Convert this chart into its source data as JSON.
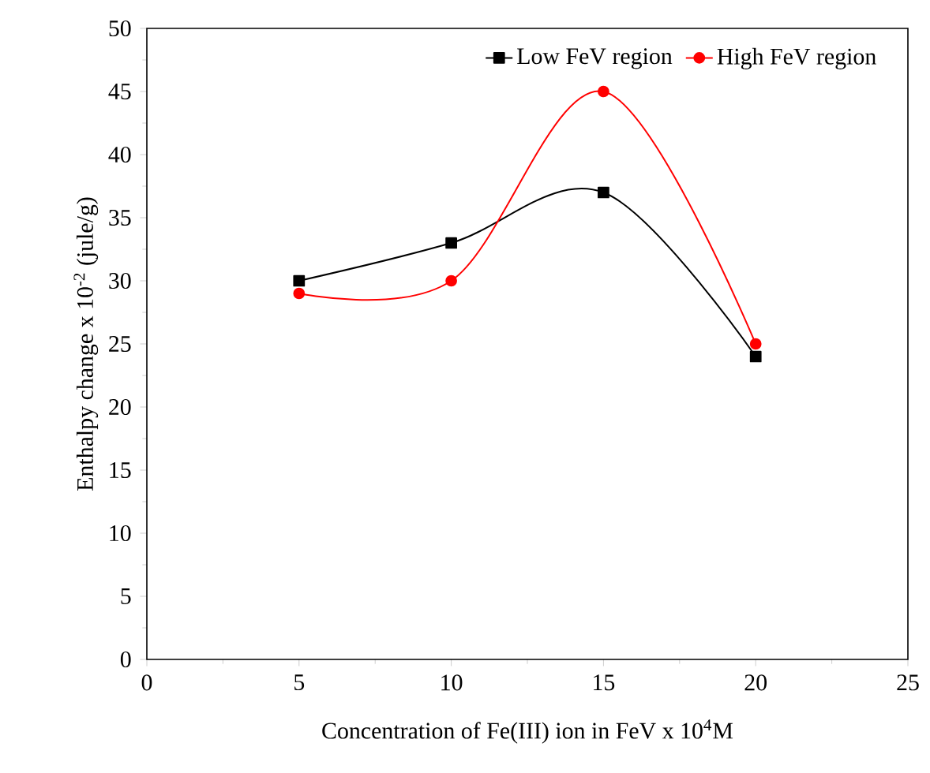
{
  "chart_data": {
    "type": "line",
    "xlabel": "Concentration of Fe(III) ion in FeV x 10$^{4}$M",
    "ylabel": "Enthalpy change x 10$^{-2}$ (jule/g)",
    "x": [
      5,
      10,
      15,
      20
    ],
    "series": [
      {
        "name": "Low FeV region",
        "color": "#000000",
        "marker": "square",
        "values": [
          30,
          33,
          37,
          24
        ]
      },
      {
        "name": "High FeV region",
        "color": "#ff0000",
        "marker": "circle",
        "values": [
          29,
          30,
          45,
          25
        ]
      }
    ],
    "xlim": [
      0,
      25
    ],
    "xticks": [
      0,
      5,
      10,
      15,
      20,
      25
    ],
    "ylim": [
      0,
      50
    ],
    "yticks": [
      0,
      5,
      10,
      15,
      20,
      25,
      30,
      35,
      40,
      45,
      50
    ],
    "legend": "top right"
  }
}
